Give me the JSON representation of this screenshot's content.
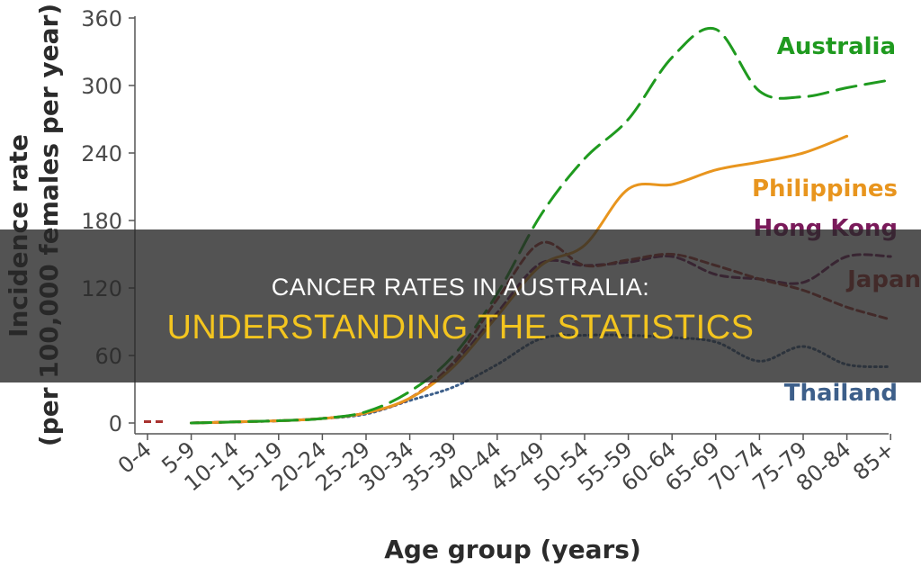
{
  "banner": {
    "line1": "CANCER RATES IN AUSTRALIA:",
    "line2": "UNDERSTANDING THE STATISTICS"
  },
  "chart_data": {
    "type": "line",
    "xlabel": "Age group (years)",
    "ylabel_line1": "Incidence rate",
    "ylabel_line2": "(per 100,000 females per year)",
    "ylim": [
      0,
      360
    ],
    "yticks": [
      0,
      60,
      120,
      180,
      240,
      300,
      360
    ],
    "categories": [
      "0-4",
      "5-9",
      "10-14",
      "15-19",
      "20-24",
      "25-29",
      "30-34",
      "35-39",
      "40-44",
      "45-49",
      "50-54",
      "55-59",
      "60-64",
      "65-69",
      "70-74",
      "75-79",
      "80-84",
      "85+"
    ],
    "grid": false,
    "series": [
      {
        "name": "Australia",
        "color": "#1f9a1f",
        "dash": "22,10",
        "values": [
          null,
          0,
          1,
          2,
          4,
          10,
          28,
          60,
          115,
          185,
          235,
          270,
          325,
          350,
          295,
          290,
          298,
          305
        ]
      },
      {
        "name": "Philippines",
        "color": "#e8951e",
        "dash": "",
        "values": [
          null,
          0,
          1,
          2,
          4,
          9,
          22,
          50,
          95,
          140,
          158,
          208,
          212,
          225,
          232,
          240,
          255,
          null
        ]
      },
      {
        "name": "Hong Kong",
        "color": "#7a1a5a",
        "dash": "8,5",
        "values": [
          null,
          0,
          1,
          2,
          4,
          9,
          22,
          52,
          98,
          142,
          140,
          143,
          148,
          132,
          128,
          125,
          148,
          148
        ]
      },
      {
        "name": "Japan",
        "color": "#a8322f",
        "dash": "8,5",
        "values": [
          2,
          0,
          1,
          2,
          4,
          9,
          22,
          54,
          110,
          160,
          140,
          145,
          150,
          140,
          128,
          118,
          103,
          92
        ]
      },
      {
        "name": "Thailand",
        "color": "#3d5f8a",
        "dash": "2,4",
        "values": [
          null,
          0,
          1,
          2,
          4,
          8,
          20,
          32,
          52,
          75,
          78,
          78,
          76,
          72,
          55,
          68,
          52,
          50
        ]
      }
    ]
  }
}
